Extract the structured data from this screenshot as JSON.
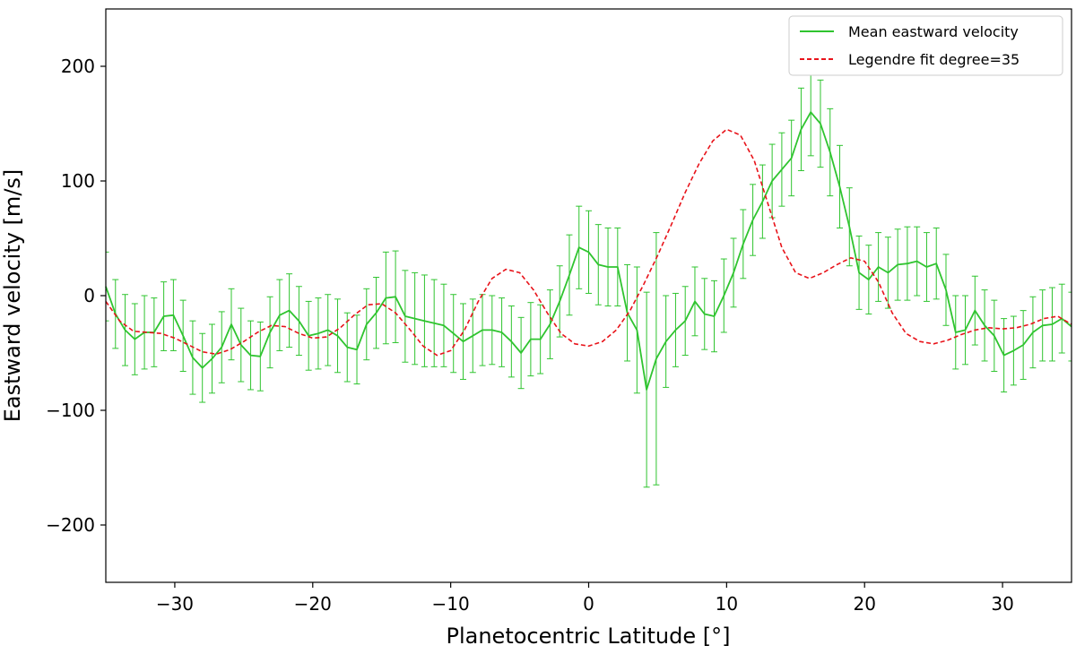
{
  "chart_data": {
    "type": "line",
    "title": "",
    "xlabel": "Planetocentric Latitude [°]",
    "ylabel": "Eastward velocity [m/s]",
    "xlim": [
      -35,
      35
    ],
    "ylim": [
      -250,
      250
    ],
    "xticks": [
      -30,
      -20,
      -10,
      0,
      10,
      20,
      30
    ],
    "xtick_labels": [
      "−30",
      "−20",
      "−10",
      "0",
      "10",
      "20",
      "30"
    ],
    "yticks": [
      -200,
      -100,
      0,
      100,
      200
    ],
    "ytick_labels": [
      "−200",
      "−100",
      "0",
      "100",
      "200"
    ],
    "grid": false,
    "legend_position": "upper-right",
    "series": [
      {
        "name": "Mean eastward velocity",
        "style": "solid-with-errorbars",
        "color": "#2fc42f",
        "x": [
          -35,
          -34.3,
          -33.6,
          -32.9,
          -32.2,
          -31.5,
          -30.8,
          -30.1,
          -29.4,
          -28.7,
          -28,
          -27.3,
          -26.6,
          -25.9,
          -25.2,
          -24.5,
          -23.8,
          -23.1,
          -22.4,
          -21.7,
          -21,
          -20.3,
          -19.6,
          -18.9,
          -18.2,
          -17.5,
          -16.8,
          -16.1,
          -15.4,
          -14.7,
          -14,
          -13.3,
          -12.6,
          -11.9,
          -11.2,
          -10.5,
          -9.8,
          -9.1,
          -8.4,
          -7.7,
          -7,
          -6.3,
          -5.6,
          -4.9,
          -4.2,
          -3.5,
          -2.8,
          -2.1,
          -1.4,
          -0.7,
          0,
          0.7,
          1.4,
          2.1,
          2.8,
          3.5,
          4.2,
          4.9,
          5.6,
          6.3,
          7,
          7.7,
          8.4,
          9.1,
          9.8,
          10.5,
          11.2,
          11.9,
          12.6,
          13.3,
          14,
          14.7,
          15.4,
          16.1,
          16.8,
          17.5,
          18.2,
          18.9,
          19.6,
          20.3,
          21,
          21.7,
          22.4,
          23.1,
          23.8,
          24.5,
          25.2,
          25.9,
          26.6,
          27.3,
          28,
          28.7,
          29.4,
          30.1,
          30.8,
          31.5,
          32.2,
          32.9,
          33.6,
          34.3,
          35
        ],
        "y": [
          8,
          -16,
          -30,
          -38,
          -32,
          -32,
          -18,
          -17,
          -35,
          -54,
          -63,
          -55,
          -45,
          -25,
          -43,
          -52,
          -53,
          -32,
          -17,
          -13,
          -22,
          -35,
          -33,
          -30,
          -35,
          -45,
          -47,
          -25,
          -15,
          -2,
          -1,
          -18,
          -20,
          -22,
          -24,
          -26,
          -33,
          -40,
          -35,
          -30,
          -30,
          -32,
          -40,
          -50,
          -38,
          -38,
          -25,
          -5,
          18,
          42,
          38,
          27,
          25,
          25,
          -15,
          -30,
          -82,
          -55,
          -40,
          -30,
          -22,
          -5,
          -16,
          -18,
          0,
          20,
          45,
          66,
          82,
          100,
          110,
          120,
          145,
          160,
          150,
          125,
          95,
          60,
          20,
          14,
          25,
          20,
          27,
          28,
          30,
          25,
          28,
          5,
          -32,
          -30,
          -13,
          -26,
          -35,
          -52,
          -48,
          -43,
          -32,
          -26,
          -25,
          -20,
          -27
        ],
        "yerr": [
          30,
          30,
          31,
          31,
          32,
          30,
          30,
          31,
          31,
          32,
          30,
          30,
          31,
          31,
          32,
          30,
          30,
          31,
          31,
          32,
          30,
          30,
          31,
          31,
          32,
          30,
          30,
          31,
          31,
          40,
          40,
          40,
          40,
          40,
          38,
          36,
          34,
          33,
          32,
          31,
          30,
          30,
          31,
          31,
          32,
          30,
          30,
          31,
          35,
          36,
          36,
          35,
          34,
          34,
          42,
          55,
          85,
          110,
          40,
          32,
          30,
          30,
          31,
          31,
          32,
          30,
          30,
          31,
          32,
          32,
          32,
          33,
          36,
          38,
          38,
          38,
          36,
          34,
          32,
          30,
          30,
          31,
          31,
          32,
          30,
          30,
          31,
          31,
          32,
          30,
          30,
          31,
          31,
          32,
          30,
          30,
          31,
          31,
          32,
          30,
          30
        ]
      },
      {
        "name": "Legendre fit degree=35",
        "style": "dashed",
        "color": "#e8131a",
        "x": [
          -35,
          -34,
          -33,
          -32,
          -31,
          -30,
          -29,
          -28,
          -27,
          -26,
          -25,
          -24,
          -23,
          -22,
          -21,
          -20,
          -19,
          -18,
          -17,
          -16,
          -15,
          -14,
          -13,
          -12,
          -11,
          -10,
          -9,
          -8,
          -7,
          -6,
          -5,
          -4,
          -3,
          -2,
          -1,
          0,
          1,
          2,
          3,
          4,
          5,
          6,
          7,
          8,
          9,
          10,
          11,
          12,
          13,
          14,
          15,
          16,
          17,
          18,
          19,
          20,
          21,
          22,
          23,
          24,
          25,
          26,
          27,
          28,
          29,
          30,
          31,
          32,
          33,
          34,
          35
        ],
        "y": [
          -5,
          -22,
          -31,
          -32,
          -33,
          -37,
          -43,
          -49,
          -51,
          -47,
          -40,
          -32,
          -26,
          -27,
          -33,
          -37,
          -36,
          -28,
          -17,
          -8,
          -7,
          -15,
          -29,
          -44,
          -52,
          -48,
          -30,
          -5,
          15,
          23,
          20,
          5,
          -15,
          -33,
          -42,
          -44,
          -40,
          -30,
          -13,
          10,
          35,
          62,
          90,
          115,
          135,
          145,
          140,
          118,
          80,
          42,
          20,
          15,
          20,
          27,
          33,
          30,
          12,
          -15,
          -33,
          -40,
          -42,
          -39,
          -34,
          -30,
          -28,
          -29,
          -28,
          -25,
          -20,
          -18,
          -25
        ]
      }
    ]
  }
}
